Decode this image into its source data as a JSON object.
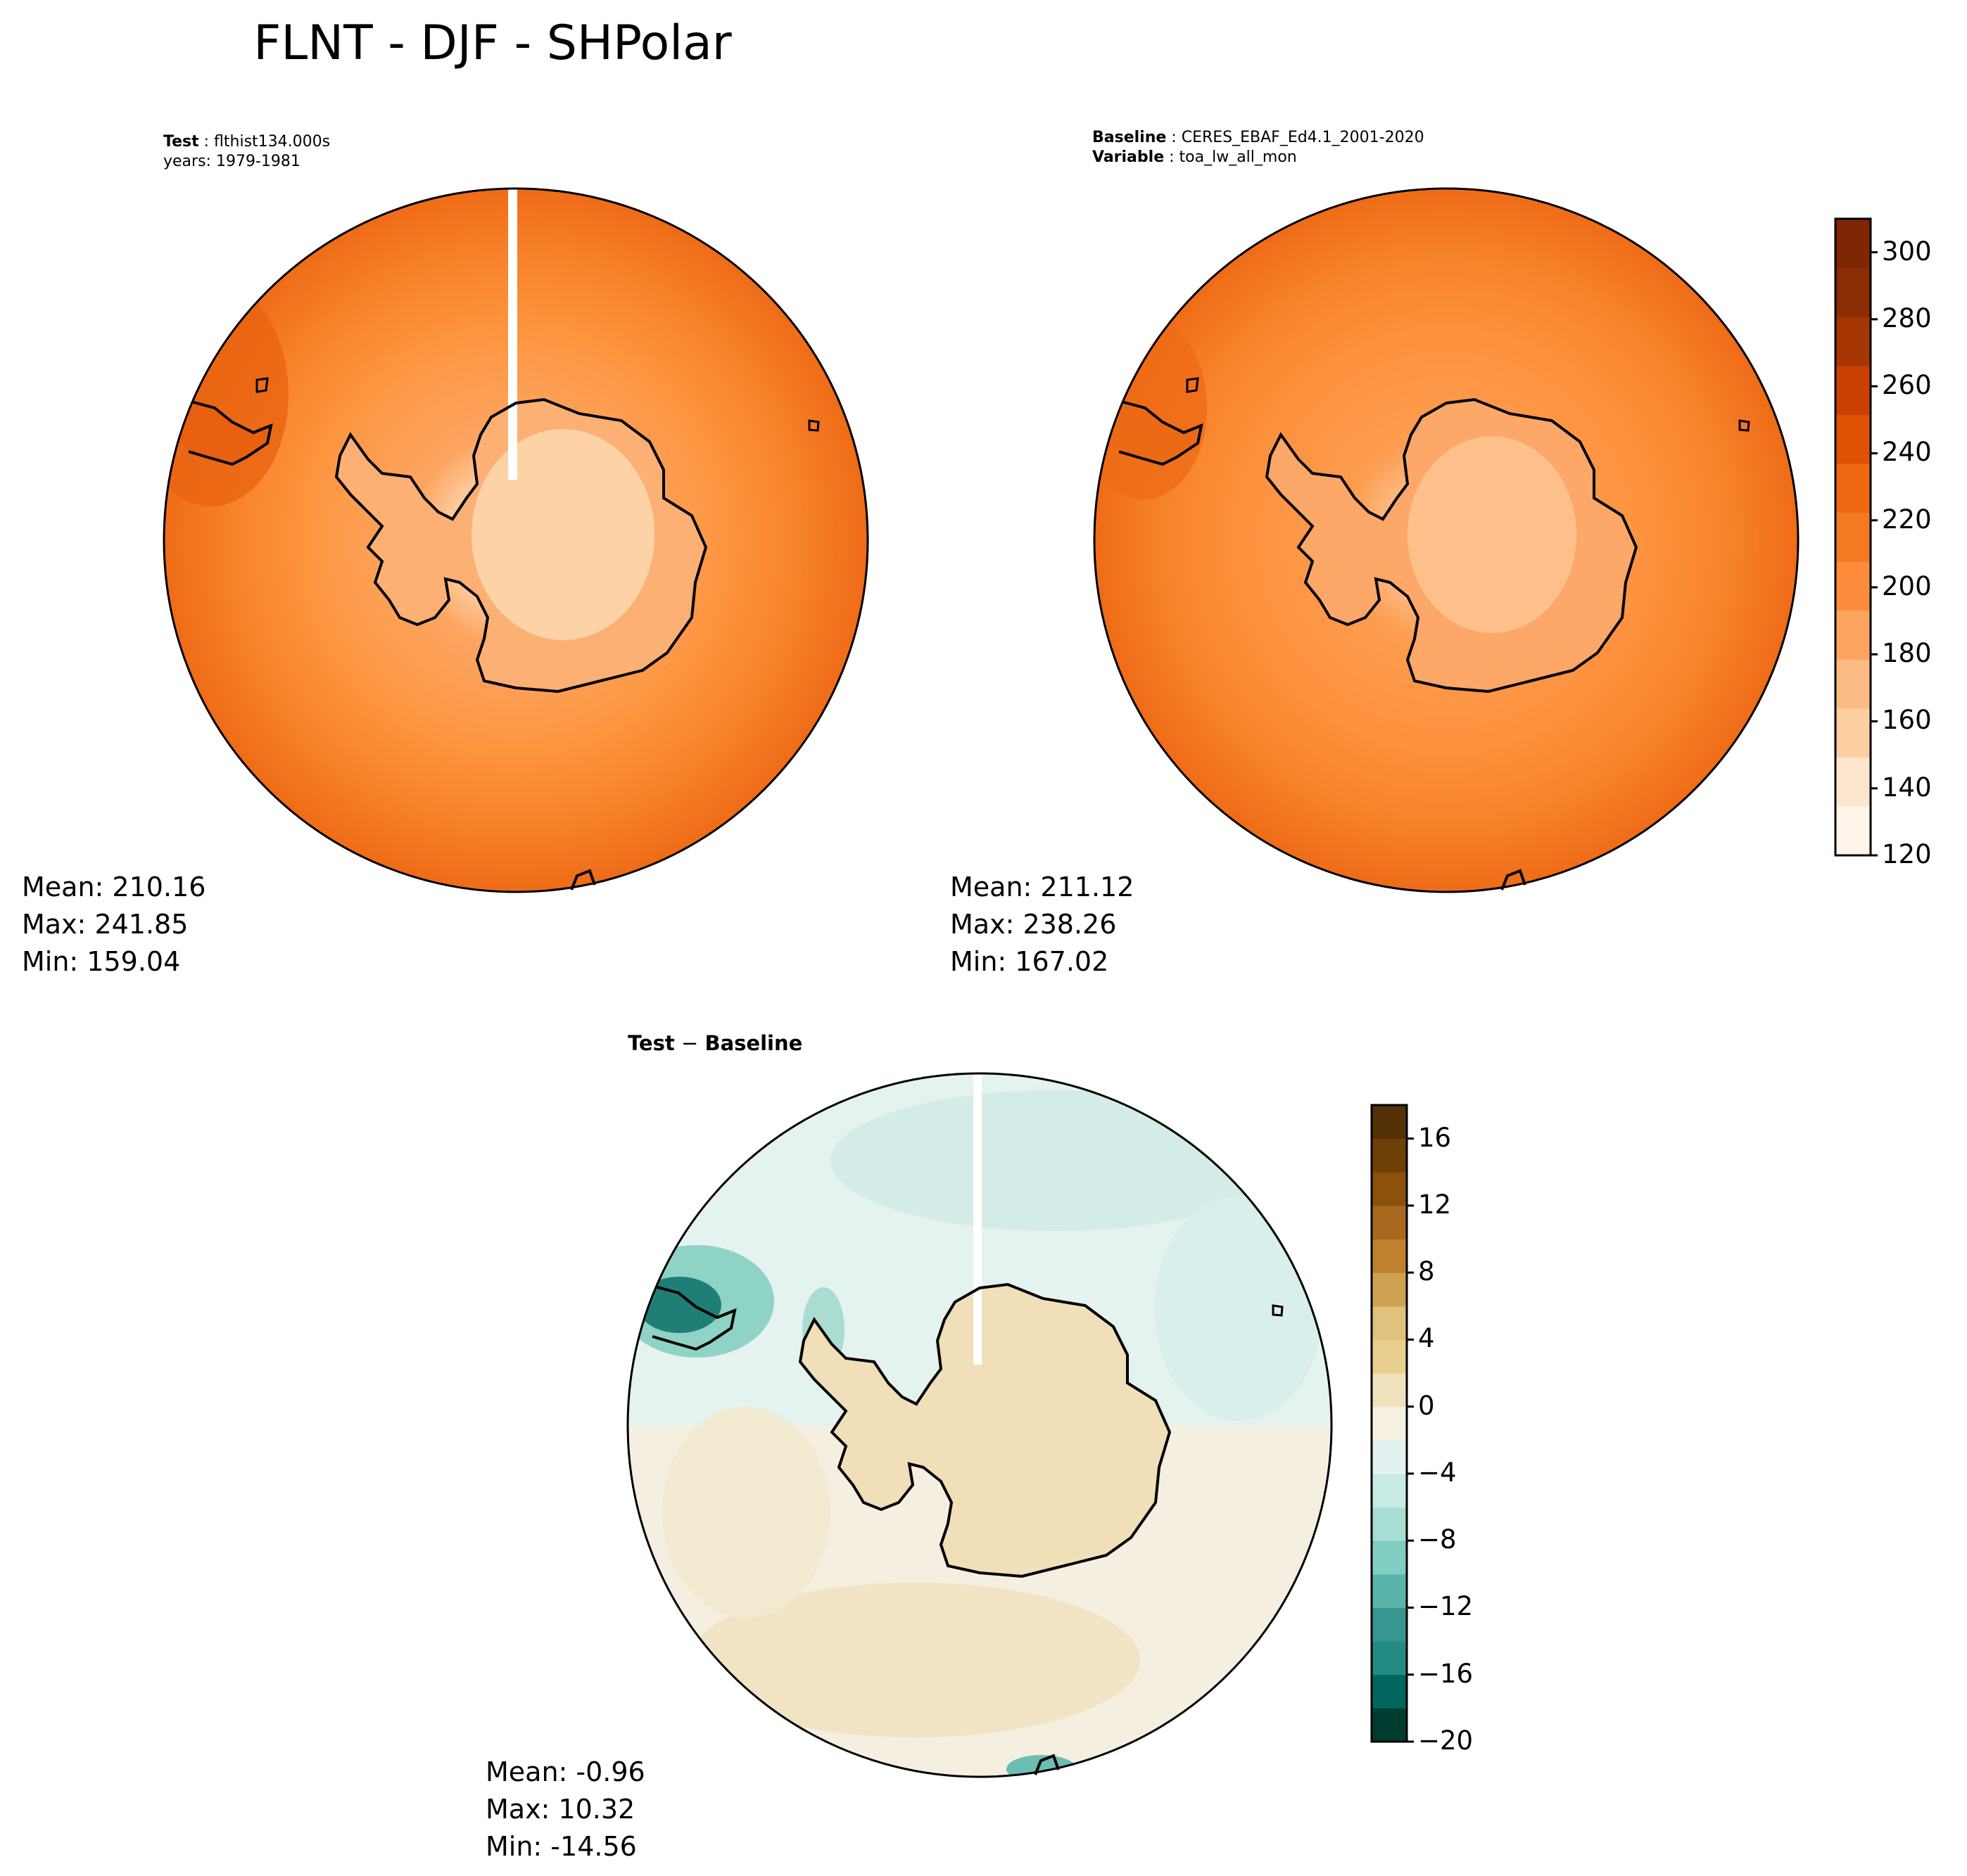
{
  "figure": {
    "title": "FLNT - DJF - SHPolar"
  },
  "panels": {
    "test": {
      "label_bold": "Test",
      "name": "flthist134.000s",
      "years": "years: 1979-1981",
      "stats": {
        "mean": "Mean: 210.16",
        "max": "Max: 241.85",
        "min": "Min: 159.04"
      }
    },
    "baseline": {
      "label_bold": "Baseline",
      "name": "CERES_EBAF_Ed4.1_2001-2020",
      "var_label_bold": "Variable",
      "var_name": "toa_lw_all_mon",
      "stats": {
        "mean": "Mean: 211.12",
        "max": "Max: 238.26",
        "min": "Min: 167.02"
      }
    },
    "diff": {
      "title_left": "Test",
      "title_op": " − ",
      "title_right": "Baseline",
      "stats": {
        "mean": "Mean: -0.96",
        "max": "Max: 10.32",
        "min": "Min: -14.56"
      }
    }
  },
  "colorbars": {
    "main": {
      "ticks": [
        "120",
        "140",
        "160",
        "180",
        "200",
        "220",
        "240",
        "260",
        "280",
        "300"
      ],
      "range": [
        120,
        310
      ],
      "colors": [
        "#fff5eb",
        "#fee6ce",
        "#fdd0a2",
        "#fdbb84",
        "#fda560",
        "#fd8d3c",
        "#f57a24",
        "#f06712",
        "#e05206",
        "#c94203",
        "#a63603",
        "#8a2c04",
        "#7f2704"
      ]
    },
    "diff": {
      "ticks": [
        "16",
        "12",
        "8",
        "4",
        "0",
        "−4",
        "−8",
        "−12",
        "−16",
        "−20"
      ],
      "range": [
        -20,
        18
      ],
      "colors": [
        "#003c30",
        "#01665e",
        "#238b82",
        "#35978f",
        "#5ab4ac",
        "#80cdc1",
        "#a8ddd3",
        "#c7eae5",
        "#e3f2f0",
        "#f5f0e0",
        "#f0e1bd",
        "#e8cf8e",
        "#dfc27d",
        "#cfa252",
        "#bf812d",
        "#a8691f",
        "#8c510a",
        "#6e3f07",
        "#543005"
      ]
    }
  }
}
